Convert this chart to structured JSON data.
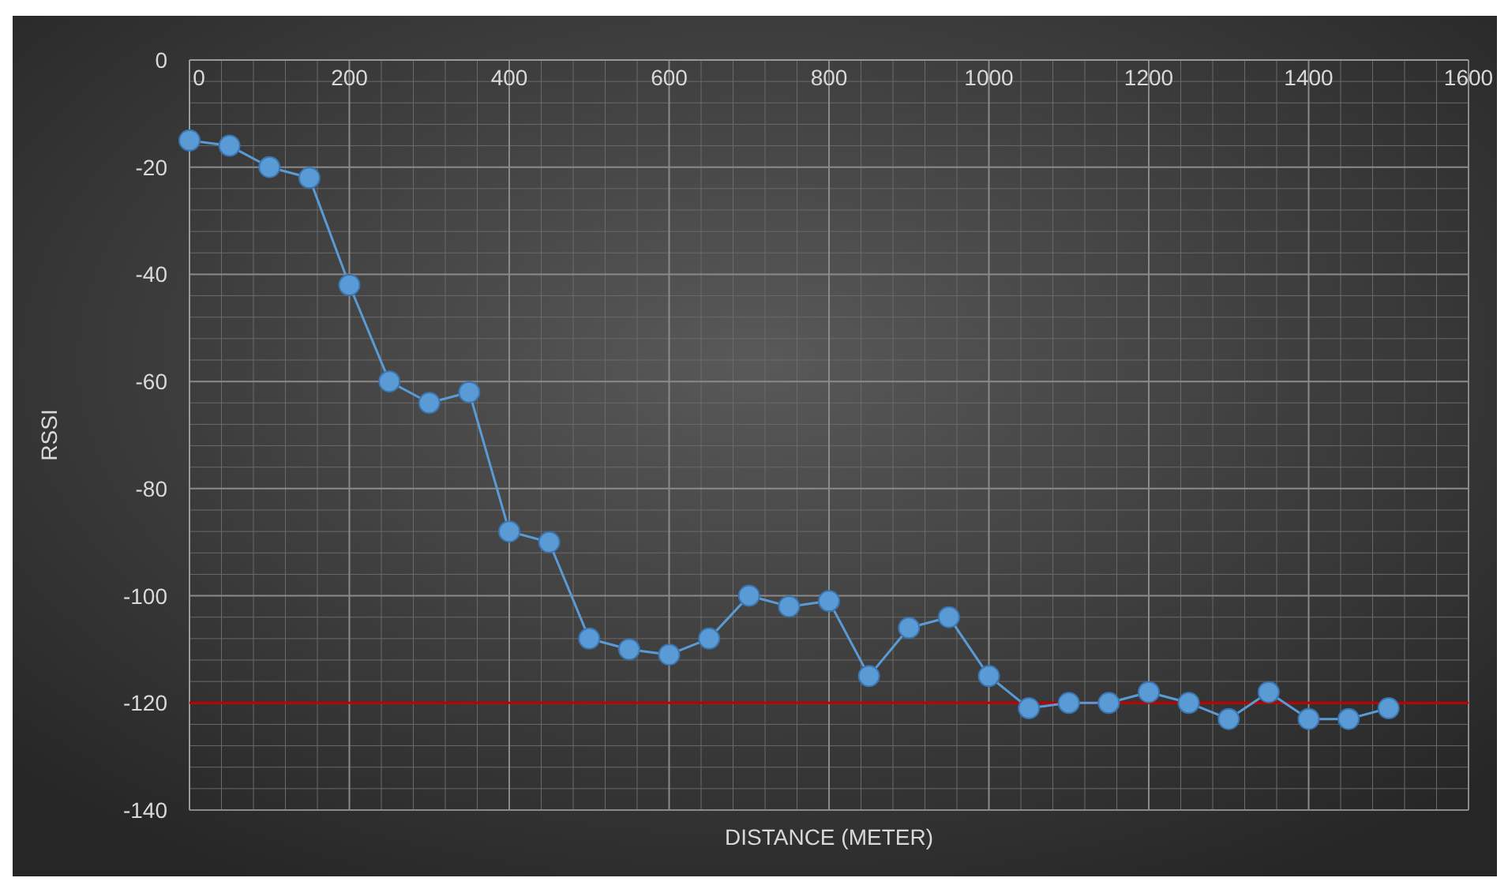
{
  "chart_data": {
    "type": "line",
    "xlabel": "DISTANCE (METER)",
    "ylabel": "RSSI",
    "x": [
      0,
      50,
      100,
      150,
      200,
      250,
      300,
      350,
      400,
      450,
      500,
      550,
      600,
      650,
      700,
      750,
      800,
      850,
      900,
      950,
      1000,
      1050,
      1100,
      1150,
      1200,
      1250,
      1300,
      1350,
      1400,
      1450,
      1500
    ],
    "series": [
      {
        "color": "#5b9bd5",
        "values": [
          -15,
          -16,
          -20,
          -22,
          -42,
          -60,
          -64,
          -62,
          -88,
          -90,
          -108,
          -110,
          -111,
          -108,
          -100,
          -102,
          -101,
          -115,
          -106,
          -104,
          -115,
          -121,
          -120,
          -120,
          -118,
          -120,
          -123,
          -118,
          -123,
          -123,
          -121
        ]
      }
    ],
    "xlim": [
      0,
      1600
    ],
    "xticks": [
      0,
      200,
      400,
      600,
      800,
      1000,
      1200,
      1400,
      1600
    ],
    "ylim": [
      -140,
      0
    ],
    "yticks": [
      -140,
      -120,
      -100,
      -80,
      -60,
      -40,
      -20,
      0
    ],
    "ref_lines": [
      {
        "axis": "y",
        "value": -120,
        "color": "#c00000"
      }
    ],
    "grid": true,
    "marker": "circle",
    "line_style": "solid"
  }
}
